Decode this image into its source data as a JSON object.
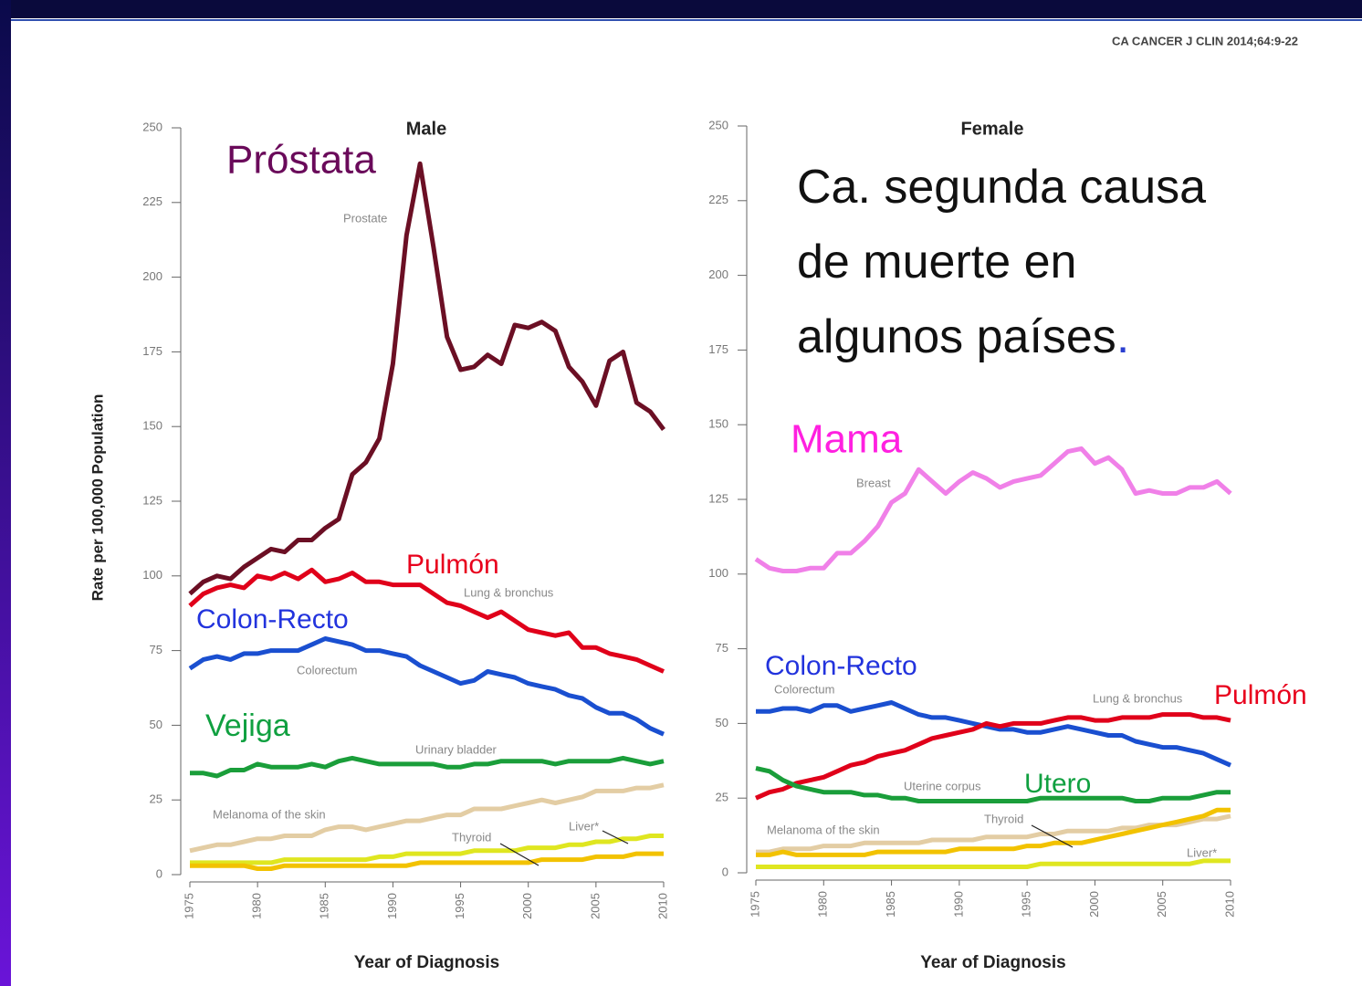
{
  "header": {
    "citation": "CA CANCER J CLIN 2014;64:9-22"
  },
  "overlay_text": {
    "lines": [
      "Ca. segunda causa",
      "de muerte en",
      "algunos países"
    ],
    "end": "."
  },
  "chart_data": [
    {
      "type": "line",
      "title": "Male",
      "xlabel": "Year of Diagnosis",
      "ylabel": "Rate per 100,000 Population",
      "x": [
        1975,
        1976,
        1977,
        1978,
        1979,
        1980,
        1981,
        1982,
        1983,
        1984,
        1985,
        1986,
        1987,
        1988,
        1989,
        1990,
        1991,
        1992,
        1993,
        1994,
        1995,
        1996,
        1997,
        1998,
        1999,
        2000,
        2001,
        2002,
        2003,
        2004,
        2005,
        2006,
        2007,
        2008,
        2009,
        2010
      ],
      "xlim": [
        1975,
        2010
      ],
      "xticks": [
        1975,
        1980,
        1985,
        1990,
        1995,
        2000,
        2005,
        2010
      ],
      "ylim": [
        0,
        250
      ],
      "yticks": [
        0,
        25,
        50,
        75,
        100,
        125,
        150,
        175,
        200,
        225,
        250
      ],
      "series": [
        {
          "name": "Prostate",
          "color": "#6b0f24",
          "values": [
            94,
            98,
            100,
            99,
            103,
            106,
            109,
            108,
            112,
            112,
            116,
            119,
            134,
            138,
            146,
            171,
            214,
            238,
            210,
            180,
            169,
            170,
            174,
            171,
            184,
            183,
            185,
            182,
            170,
            165,
            157,
            172,
            175,
            158,
            155,
            149
          ]
        },
        {
          "name": "Lung & bronchus",
          "color": "#e0001a",
          "values": [
            90,
            94,
            96,
            97,
            96,
            100,
            99,
            101,
            99,
            102,
            98,
            99,
            101,
            98,
            98,
            97,
            97,
            97,
            94,
            91,
            90,
            88,
            86,
            88,
            85,
            82,
            81,
            80,
            81,
            76,
            76,
            74,
            73,
            72,
            70,
            68
          ]
        },
        {
          "name": "Colorectum",
          "color": "#1a4fd0",
          "values": [
            69,
            72,
            73,
            72,
            74,
            74,
            75,
            75,
            75,
            77,
            79,
            78,
            77,
            75,
            75,
            74,
            73,
            70,
            68,
            66,
            64,
            65,
            68,
            67,
            66,
            64,
            63,
            62,
            60,
            59,
            56,
            54,
            54,
            52,
            49,
            47
          ]
        },
        {
          "name": "Urinary bladder",
          "color": "#1a9e3a",
          "values": [
            34,
            34,
            33,
            35,
            35,
            37,
            36,
            36,
            36,
            37,
            36,
            38,
            39,
            38,
            37,
            37,
            37,
            37,
            37,
            36,
            36,
            37,
            37,
            38,
            38,
            38,
            38,
            37,
            38,
            38,
            38,
            38,
            39,
            38,
            37,
            38
          ]
        },
        {
          "name": "Melanoma of the skin",
          "color": "#e3cda4",
          "values": [
            8,
            9,
            10,
            10,
            11,
            12,
            12,
            13,
            13,
            13,
            15,
            16,
            16,
            15,
            16,
            17,
            18,
            18,
            19,
            20,
            20,
            22,
            22,
            22,
            23,
            24,
            25,
            24,
            25,
            26,
            28,
            28,
            28,
            29,
            29,
            30
          ]
        },
        {
          "name": "Liver*",
          "color": "#dfe620",
          "values": [
            4,
            4,
            4,
            4,
            4,
            4,
            4,
            5,
            5,
            5,
            5,
            5,
            5,
            5,
            6,
            6,
            7,
            7,
            7,
            7,
            7,
            8,
            8,
            8,
            8,
            9,
            9,
            9,
            10,
            10,
            11,
            11,
            12,
            12,
            13,
            13
          ]
        },
        {
          "name": "Thyroid",
          "color": "#f2c200",
          "values": [
            3,
            3,
            3,
            3,
            3,
            2,
            2,
            3,
            3,
            3,
            3,
            3,
            3,
            3,
            3,
            3,
            3,
            4,
            4,
            4,
            4,
            4,
            4,
            4,
            4,
            4,
            5,
            5,
            5,
            5,
            6,
            6,
            6,
            7,
            7,
            7
          ]
        }
      ],
      "annotations": [
        {
          "text": "Próstata",
          "color": "#6a0a5a"
        },
        {
          "text": "Prostate",
          "color": "#888888"
        },
        {
          "text": "Pulmón",
          "color": "#e8001c"
        },
        {
          "text": "Lung & bronchus",
          "color": "#888888"
        },
        {
          "text": "Colon-Recto",
          "color": "#2233dd"
        },
        {
          "text": "Colorectum",
          "color": "#888888"
        },
        {
          "text": "Vejiga",
          "color": "#10a040"
        },
        {
          "text": "Urinary bladder",
          "color": "#888888"
        },
        {
          "text": "Melanoma of the skin",
          "color": "#888888"
        },
        {
          "text": "Thyroid",
          "color": "#888888"
        },
        {
          "text": "Liver*",
          "color": "#888888"
        }
      ]
    },
    {
      "type": "line",
      "title": "Female",
      "xlabel": "Year of Diagnosis",
      "x": [
        1975,
        1976,
        1977,
        1978,
        1979,
        1980,
        1981,
        1982,
        1983,
        1984,
        1985,
        1986,
        1987,
        1988,
        1989,
        1990,
        1991,
        1992,
        1993,
        1994,
        1995,
        1996,
        1997,
        1998,
        1999,
        2000,
        2001,
        2002,
        2003,
        2004,
        2005,
        2006,
        2007,
        2008,
        2009,
        2010
      ],
      "xlim": [
        1975,
        2010
      ],
      "xticks": [
        1975,
        1980,
        1985,
        1990,
        1995,
        2000,
        2005,
        2010
      ],
      "ylim": [
        0,
        250
      ],
      "yticks": [
        0,
        25,
        50,
        75,
        100,
        125,
        150,
        175,
        200,
        225,
        250
      ],
      "series": [
        {
          "name": "Breast",
          "color": "#f080e8",
          "values": [
            105,
            102,
            101,
            101,
            102,
            102,
            107,
            107,
            111,
            116,
            124,
            127,
            135,
            131,
            127,
            131,
            134,
            132,
            129,
            131,
            132,
            133,
            137,
            141,
            142,
            137,
            139,
            135,
            127,
            128,
            127,
            127,
            129,
            129,
            131,
            127
          ]
        },
        {
          "name": "Colorectum",
          "color": "#1a4fd0",
          "values": [
            54,
            54,
            55,
            55,
            54,
            56,
            56,
            54,
            55,
            56,
            57,
            55,
            53,
            52,
            52,
            51,
            50,
            49,
            48,
            48,
            47,
            47,
            48,
            49,
            48,
            47,
            46,
            46,
            44,
            43,
            42,
            42,
            41,
            40,
            38,
            36
          ]
        },
        {
          "name": "Lung & bronchus",
          "color": "#e0001a",
          "values": [
            25,
            27,
            28,
            30,
            31,
            32,
            34,
            36,
            37,
            39,
            40,
            41,
            43,
            45,
            46,
            47,
            48,
            50,
            49,
            50,
            50,
            50,
            51,
            52,
            52,
            51,
            51,
            52,
            52,
            52,
            53,
            53,
            53,
            52,
            52,
            51
          ]
        },
        {
          "name": "Uterine corpus",
          "color": "#1a9e3a",
          "values": [
            35,
            34,
            31,
            29,
            28,
            27,
            27,
            27,
            26,
            26,
            25,
            25,
            24,
            24,
            24,
            24,
            24,
            24,
            24,
            24,
            24,
            25,
            25,
            25,
            25,
            25,
            25,
            25,
            24,
            24,
            25,
            25,
            25,
            26,
            27,
            27
          ]
        },
        {
          "name": "Melanoma of the skin",
          "color": "#e3cda4",
          "values": [
            7,
            7,
            8,
            8,
            8,
            9,
            9,
            9,
            10,
            10,
            10,
            10,
            10,
            11,
            11,
            11,
            11,
            12,
            12,
            12,
            12,
            13,
            13,
            14,
            14,
            14,
            14,
            15,
            15,
            16,
            16,
            16,
            17,
            18,
            18,
            19
          ]
        },
        {
          "name": "Thyroid",
          "color": "#f2c200",
          "values": [
            6,
            6,
            7,
            6,
            6,
            6,
            6,
            6,
            6,
            7,
            7,
            7,
            7,
            7,
            7,
            8,
            8,
            8,
            8,
            8,
            9,
            9,
            10,
            10,
            10,
            11,
            12,
            13,
            14,
            15,
            16,
            17,
            18,
            19,
            21,
            21
          ]
        },
        {
          "name": "Liver*",
          "color": "#dfe620",
          "values": [
            2,
            2,
            2,
            2,
            2,
            2,
            2,
            2,
            2,
            2,
            2,
            2,
            2,
            2,
            2,
            2,
            2,
            2,
            2,
            2,
            2,
            3,
            3,
            3,
            3,
            3,
            3,
            3,
            3,
            3,
            3,
            3,
            3,
            4,
            4,
            4
          ]
        }
      ],
      "annotations": [
        {
          "text": "Mama",
          "color": "#ff20e0"
        },
        {
          "text": "Breast",
          "color": "#888888"
        },
        {
          "text": "Colon-Recto",
          "color": "#2233dd"
        },
        {
          "text": "Colorectum",
          "color": "#888888"
        },
        {
          "text": "Lung & bronchus",
          "color": "#888888"
        },
        {
          "text": "Pulmón",
          "color": "#e8001c"
        },
        {
          "text": "Uterine corpus",
          "color": "#888888"
        },
        {
          "text": "Utero",
          "color": "#10a040"
        },
        {
          "text": "Melanoma of the skin",
          "color": "#888888"
        },
        {
          "text": "Thyroid",
          "color": "#888888"
        },
        {
          "text": "Liver*",
          "color": "#888888"
        }
      ]
    }
  ]
}
